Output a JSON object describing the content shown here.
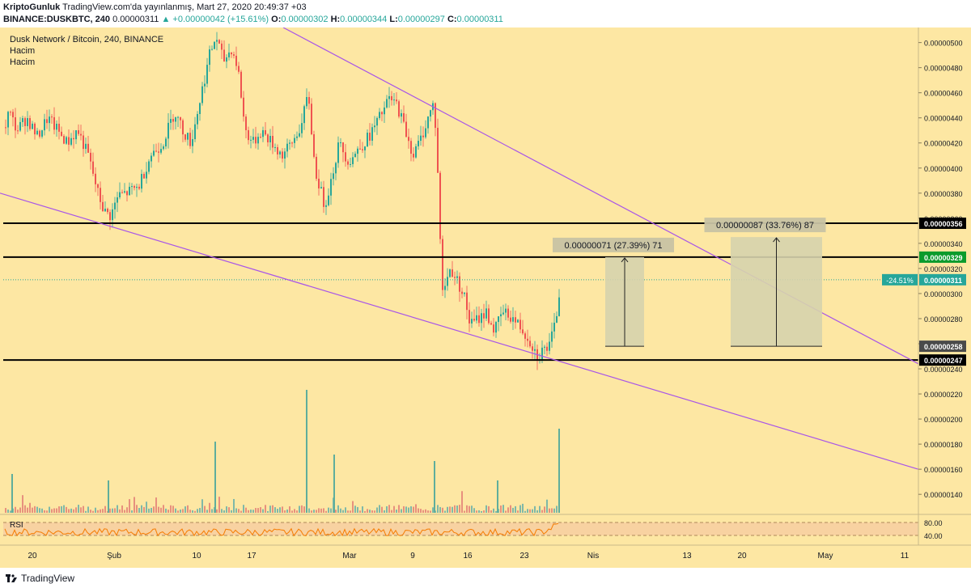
{
  "header": {
    "line1_author": "KriptoGunluk",
    "line1_rest": "TradingView.com'da yayınlanmış, Mart 27, 2020 20:49:37 +03",
    "symbol": "BINANCE:DUSKBTC, 240",
    "last": "0.00000311",
    "change": "▲ +0.00000042 (+15.61%)",
    "o_label": "O:",
    "o_value": "0.00000302",
    "h_label": "H:",
    "h_value": "0.00000344",
    "l_label": "L:",
    "l_value": "0.00000297",
    "c_label": "C:",
    "c_value": "0.00000311"
  },
  "legend": {
    "title": "Dusk Network / Bitcoin, 240, BINANCE",
    "volume1": "Hacim",
    "volume2": "Hacim",
    "rsi": "RSI"
  },
  "footer": {
    "brand": "TradingView"
  },
  "colors": {
    "background": "#fde7a3",
    "up": "#26a69a",
    "down": "#ef5350",
    "trendline": "#a855e8",
    "rsi_line": "#f57c00",
    "rsi_band": "#f5c9a0",
    "measure_box": "#d6d3ad",
    "last_price": "#26a69a",
    "resistance_label": "#0b9b2c"
  },
  "chart_data": {
    "type": "candlestick",
    "title": "Dusk Network / Bitcoin, 240, BINANCE",
    "yaxis": {
      "range": [
        1.24e-06,
        5.12e-06
      ],
      "ticks": [
        "0.00000500",
        "0.00000480",
        "0.00000460",
        "0.00000440",
        "0.00000420",
        "0.00000400",
        "0.00000380",
        "0.00000360",
        "0.00000340",
        "0.00000320",
        "0.00000300",
        "0.00000280",
        "0.00000260",
        "0.00000240",
        "0.00000220",
        "0.00000200",
        "0.00000180",
        "0.00000160",
        "0.00000140"
      ]
    },
    "xaxis": {
      "ticks": [
        "20",
        "Şub",
        "10",
        "17",
        "Mar",
        "9",
        "16",
        "23",
        "Nis",
        "13",
        "20",
        "May",
        "11"
      ]
    },
    "price_path": [
      [
        0,
        4.2e-06
      ],
      [
        10,
        4.45e-06
      ],
      [
        20,
        4.3e-06
      ],
      [
        32,
        4.4e-06
      ],
      [
        45,
        4.25e-06
      ],
      [
        58,
        4.4e-06
      ],
      [
        70,
        4.3e-06
      ],
      [
        82,
        4.2e-06
      ],
      [
        95,
        4.3e-06
      ],
      [
        108,
        4.1e-06
      ],
      [
        120,
        3.8e-06
      ],
      [
        128,
        3.65e-06
      ],
      [
        136,
        3.62e-06
      ],
      [
        145,
        3.78e-06
      ],
      [
        155,
        3.8e-06
      ],
      [
        170,
        3.85e-06
      ],
      [
        185,
        4.1e-06
      ],
      [
        200,
        4.2e-06
      ],
      [
        215,
        4.45e-06
      ],
      [
        225,
        4.3e-06
      ],
      [
        235,
        4.2e-06
      ],
      [
        248,
        4.6e-06
      ],
      [
        258,
        4.9e-06
      ],
      [
        266,
        5.05e-06
      ],
      [
        275,
        4.85e-06
      ],
      [
        285,
        4.95e-06
      ],
      [
        293,
        4.8e-06
      ],
      [
        302,
        4.3e-06
      ],
      [
        312,
        4.2e-06
      ],
      [
        322,
        4.3e-06
      ],
      [
        335,
        4.2e-06
      ],
      [
        348,
        4.1e-06
      ],
      [
        360,
        4.2e-06
      ],
      [
        372,
        4.35e-06
      ],
      [
        380,
        4.6e-06
      ],
      [
        388,
        4e-06
      ],
      [
        400,
        3.7e-06
      ],
      [
        408,
        3.9e-06
      ],
      [
        418,
        4.2e-06
      ],
      [
        430,
        4.05e-06
      ],
      [
        442,
        4.15e-06
      ],
      [
        455,
        4.25e-06
      ],
      [
        468,
        4.4e-06
      ],
      [
        480,
        4.55e-06
      ],
      [
        490,
        4.5e-06
      ],
      [
        500,
        4.3e-06
      ],
      [
        510,
        4.1e-06
      ],
      [
        520,
        4.25e-06
      ],
      [
        528,
        4.4e-06
      ],
      [
        534,
        4.5e-06
      ],
      [
        538,
        4.3e-06
      ],
      [
        542,
        3.6e-06
      ],
      [
        546,
        3e-06
      ],
      [
        550,
        3.1e-06
      ],
      [
        556,
        3.2e-06
      ],
      [
        564,
        3.1e-06
      ],
      [
        572,
        3e-06
      ],
      [
        580,
        2.75e-06
      ],
      [
        590,
        2.8e-06
      ],
      [
        600,
        2.85e-06
      ],
      [
        610,
        2.7e-06
      ],
      [
        620,
        2.85e-06
      ],
      [
        630,
        2.82e-06
      ],
      [
        640,
        2.75e-06
      ],
      [
        648,
        2.68e-06
      ],
      [
        656,
        2.6e-06
      ],
      [
        663,
        2.5e-06
      ],
      [
        670,
        2.55e-06
      ],
      [
        678,
        2.58e-06
      ],
      [
        685,
        2.75e-06
      ],
      [
        690,
        3e-06
      ],
      [
        692,
        3.11e-06
      ]
    ],
    "horizontal_levels": [
      3.56e-06,
      3.29e-06,
      2.47e-06
    ],
    "price_labels": [
      {
        "value": 3.56e-06,
        "text": "0.00000356",
        "style": "level"
      },
      {
        "value": 3.29e-06,
        "text": "0.00000329",
        "style": "green"
      },
      {
        "value": 3.11e-06,
        "text": "0.00000311",
        "style": "last"
      },
      {
        "value": 2.58e-06,
        "text": "0.00000258",
        "style": "gray"
      },
      {
        "value": 2.47e-06,
        "text": "0.00000247",
        "style": "level"
      }
    ],
    "last_price_tag": "-24.51%",
    "trendlines": [
      {
        "from": [
          350,
          5.12e-06
        ],
        "to": [
          1135,
          2.44e-06
        ]
      },
      {
        "from": [
          0,
          3.8e-06
        ],
        "to": [
          1135,
          1.6e-06
        ]
      }
    ],
    "measurements": [
      {
        "label": "0.00000071 (27.39%) 71",
        "x1": 748,
        "x2": 796,
        "from": 2.58e-06,
        "to": 3.29e-06
      },
      {
        "label": "0.00000087 (33.76%) 87",
        "x1": 903,
        "x2": 1016,
        "from": 2.58e-06,
        "to": 3.45e-06
      }
    ],
    "volume": {
      "note": "volume histogram pane",
      "peak_bars": [
        [
          14,
          0.3
        ],
        [
          133,
          0.25
        ],
        [
          265,
          0.55
        ],
        [
          378,
          0.95
        ],
        [
          412,
          0.45
        ],
        [
          536,
          0.4
        ],
        [
          614,
          0.25
        ],
        [
          690,
          0.65
        ]
      ]
    },
    "rsi": {
      "levels": [
        80.0,
        40.0
      ],
      "tick_labels": [
        "80.00",
        "40.00"
      ],
      "last": 80
    }
  }
}
